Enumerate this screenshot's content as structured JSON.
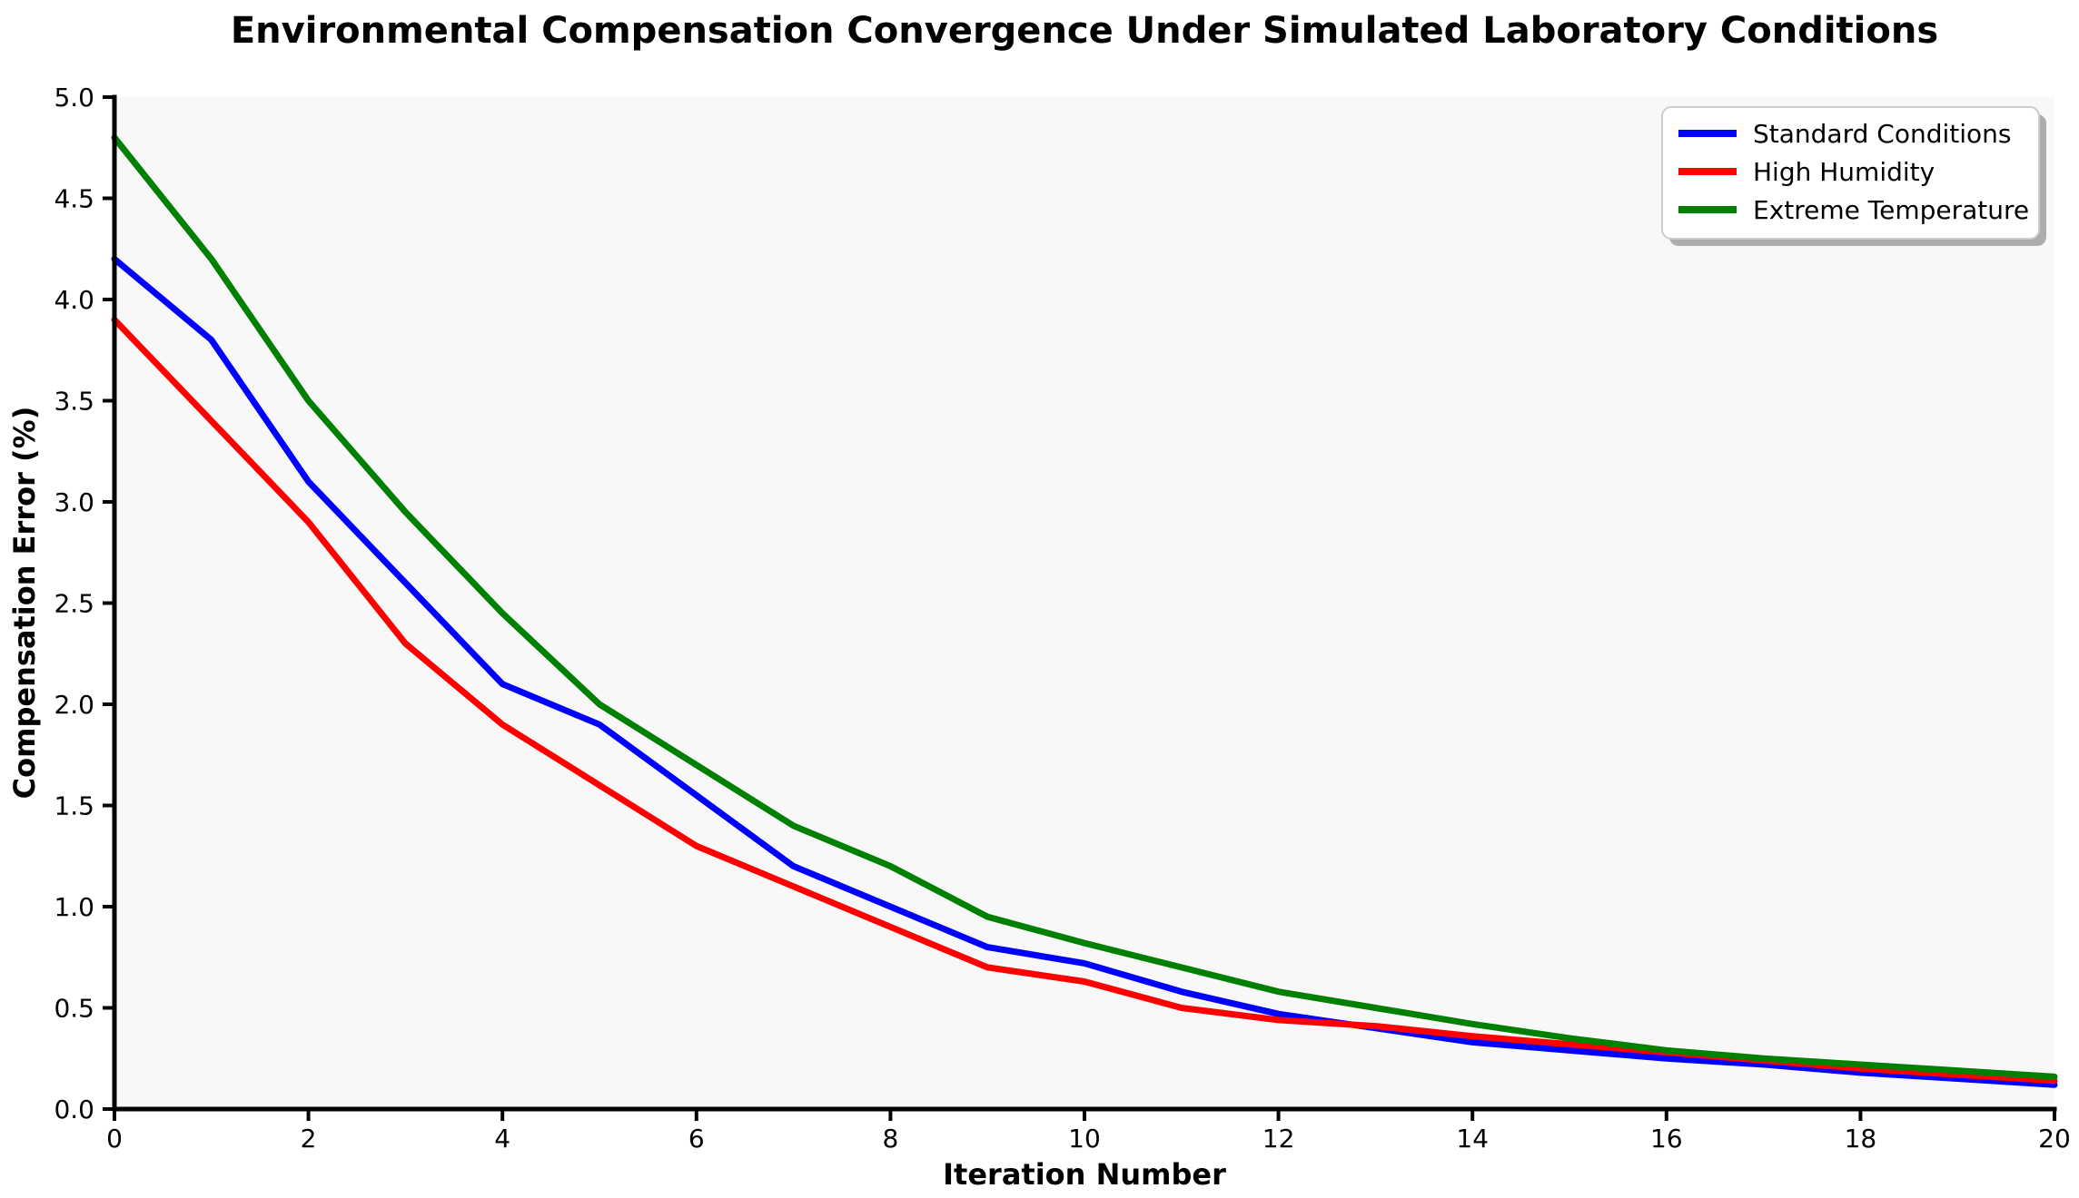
{
  "title": "Environmental Compensation Convergence Under Simulated Laboratory Conditions",
  "chart_data": {
    "type": "line",
    "title": "Environmental Compensation Convergence Under Simulated Laboratory Conditions",
    "xlabel": "Iteration Number",
    "ylabel": "Compensation Error (%)",
    "xlim": [
      0,
      20
    ],
    "ylim": [
      0.0,
      5.0
    ],
    "xticks": [
      0,
      2,
      4,
      6,
      8,
      10,
      12,
      14,
      16,
      18,
      20
    ],
    "yticks": [
      0.0,
      0.5,
      1.0,
      1.5,
      2.0,
      2.5,
      3.0,
      3.5,
      4.0,
      4.5,
      5.0
    ],
    "grid": false,
    "legend_position": "upper right",
    "plot_background": "#f8f8f8",
    "spine_color": "#000000",
    "x": [
      0,
      1,
      2,
      3,
      4,
      5,
      6,
      7,
      8,
      9,
      10,
      11,
      12,
      13,
      14,
      15,
      16,
      17,
      18,
      19,
      20
    ],
    "series": [
      {
        "name": "Standard Conditions",
        "color": "#0000ff",
        "values": [
          4.2,
          3.8,
          3.1,
          2.6,
          2.1,
          1.9,
          1.55,
          1.2,
          1.0,
          0.8,
          0.72,
          0.58,
          0.47,
          0.4,
          0.33,
          0.29,
          0.25,
          0.22,
          0.18,
          0.15,
          0.12
        ]
      },
      {
        "name": "High Humidity",
        "color": "#ff0000",
        "values": [
          3.9,
          3.4,
          2.9,
          2.3,
          1.9,
          1.6,
          1.3,
          1.1,
          0.9,
          0.7,
          0.63,
          0.5,
          0.44,
          0.41,
          0.36,
          0.32,
          0.28,
          0.24,
          0.2,
          0.17,
          0.14
        ]
      },
      {
        "name": "Extreme Temperature",
        "color": "#008000",
        "values": [
          4.8,
          4.2,
          3.5,
          2.95,
          2.45,
          2.0,
          1.7,
          1.4,
          1.2,
          0.95,
          0.82,
          0.7,
          0.58,
          0.5,
          0.42,
          0.35,
          0.29,
          0.25,
          0.22,
          0.19,
          0.16
        ]
      }
    ]
  }
}
